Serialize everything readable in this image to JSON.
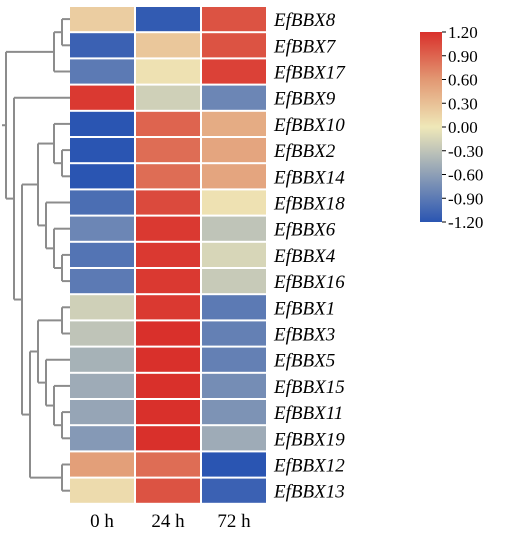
{
  "chart_data": {
    "type": "heatmap",
    "title": "",
    "xlabel": "",
    "ylabel": "",
    "columns": [
      "0 h",
      "24 h",
      "72 h"
    ],
    "rows": [
      "EfBBX8",
      "EfBBX7",
      "EfBBX17",
      "EfBBX9",
      "EfBBX10",
      "EfBBX2",
      "EfBBX14",
      "EfBBX18",
      "EfBBX6",
      "EfBBX4",
      "EfBBX16",
      "EfBBX1",
      "EfBBX3",
      "EfBBX5",
      "EfBBX15",
      "EfBBX11",
      "EfBBX19",
      "EfBBX12",
      "EfBBX13"
    ],
    "values": [
      [
        0.2,
        -1.15,
        1.0
      ],
      [
        -1.1,
        0.25,
        1.0
      ],
      [
        -0.9,
        0.05,
        1.1
      ],
      [
        1.15,
        -0.2,
        -0.8
      ],
      [
        -1.2,
        0.9,
        0.45
      ],
      [
        -1.2,
        0.85,
        0.5
      ],
      [
        -1.2,
        0.85,
        0.5
      ],
      [
        -1.0,
        1.05,
        0.05
      ],
      [
        -0.8,
        1.15,
        -0.3
      ],
      [
        -0.95,
        1.15,
        -0.15
      ],
      [
        -0.9,
        1.15,
        -0.25
      ],
      [
        -0.2,
        1.15,
        -0.9
      ],
      [
        -0.3,
        1.2,
        -0.85
      ],
      [
        -0.45,
        1.2,
        -0.85
      ],
      [
        -0.5,
        1.2,
        -0.75
      ],
      [
        -0.55,
        1.2,
        -0.7
      ],
      [
        -0.65,
        1.2,
        -0.5
      ],
      [
        0.55,
        0.85,
        -1.2
      ],
      [
        0.1,
        1.0,
        -1.1
      ]
    ],
    "colorscale": {
      "min": -1.2,
      "max": 1.2,
      "stops": [
        {
          "value": -1.2,
          "color": "#2a55b2"
        },
        {
          "value": -0.3,
          "color": "#bfc4b8"
        },
        {
          "value": 0.0,
          "color": "#efe8b8"
        },
        {
          "value": 0.6,
          "color": "#e29873"
        },
        {
          "value": 1.2,
          "color": "#d9302b"
        }
      ]
    },
    "legend": {
      "labels": [
        "1.20",
        "0.90",
        "0.60",
        "0.30",
        "0.00",
        "-0.30",
        "-0.60",
        "-0.90",
        "-1.20"
      ],
      "placement": "top-right"
    },
    "dendrogram": {
      "color": "#8c8c8c",
      "tree": {
        "children": [
          {
            "children": [
              {
                "children": [
                  {
                    "leaf": 0
                  },
                  {
                    "leaf": 1
                  }
                ]
              },
              {
                "leaf": 2
              }
            ]
          },
          {
            "children": [
              {
                "leaf": 3
              },
              {
                "children": [
                  {
                    "children": [
                      {
                        "children": [
                          {
                            "leaf": 4
                          },
                          {
                            "children": [
                              {
                                "leaf": 5
                              },
                              {
                                "leaf": 6
                              }
                            ]
                          }
                        ]
                      },
                      {
                        "children": [
                          {
                            "leaf": 7
                          },
                          {
                            "children": [
                              {
                                "leaf": 8
                              },
                              {
                                "children": [
                                  {
                                    "leaf": 9
                                  },
                                  {
                                    "leaf": 10
                                  }
                                ]
                              }
                            ]
                          }
                        ]
                      }
                    ]
                  },
                  {
                    "children": [
                      {
                        "children": [
                          {
                            "children": [
                              {
                                "leaf": 11
                              },
                              {
                                "leaf": 12
                              }
                            ]
                          },
                          {
                            "children": [
                              {
                                "leaf": 13
                              },
                              {
                                "children": [
                                  {
                                    "leaf": 14
                                  },
                                  {
                                    "children": [
                                      {
                                        "leaf": 15
                                      },
                                      {
                                        "leaf": 16
                                      }
                                    ]
                                  }
                                ]
                              }
                            ]
                          }
                        ]
                      },
                      {
                        "children": [
                          {
                            "leaf": 17
                          },
                          {
                            "leaf": 18
                          }
                        ]
                      }
                    ]
                  }
                ]
              }
            ]
          }
        ]
      }
    }
  }
}
